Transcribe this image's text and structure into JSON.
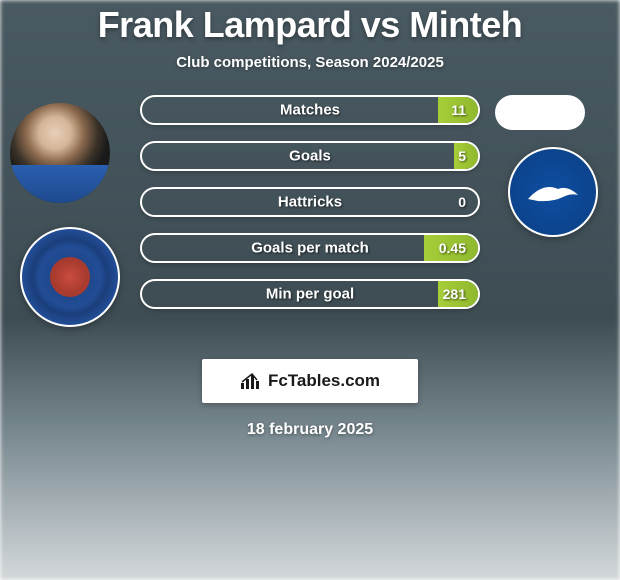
{
  "title": "Frank Lampard vs Minteh",
  "subtitle": "Club competitions, Season 2024/2025",
  "date": "18 february 2025",
  "logo_text": "FcTables.com",
  "colors": {
    "accent_green": "#a6ce39",
    "pill_border": "#ffffff",
    "club_left_bg": "#224d96",
    "club_right_bg": "#0e4ea0",
    "text": "#ffffff"
  },
  "stats": [
    {
      "label": "Matches",
      "right_value": "11",
      "right_fill_pct": 12
    },
    {
      "label": "Goals",
      "right_value": "5",
      "right_fill_pct": 7
    },
    {
      "label": "Hattricks",
      "right_value": "0",
      "right_fill_pct": 0
    },
    {
      "label": "Goals per match",
      "right_value": "0.45",
      "right_fill_pct": 16
    },
    {
      "label": "Min per goal",
      "right_value": "281",
      "right_fill_pct": 12
    }
  ],
  "players": {
    "left": {
      "name": "Frank Lampard",
      "club": "Chelsea"
    },
    "right": {
      "name": "Minteh",
      "club": "Brighton & Hove Albion"
    }
  }
}
